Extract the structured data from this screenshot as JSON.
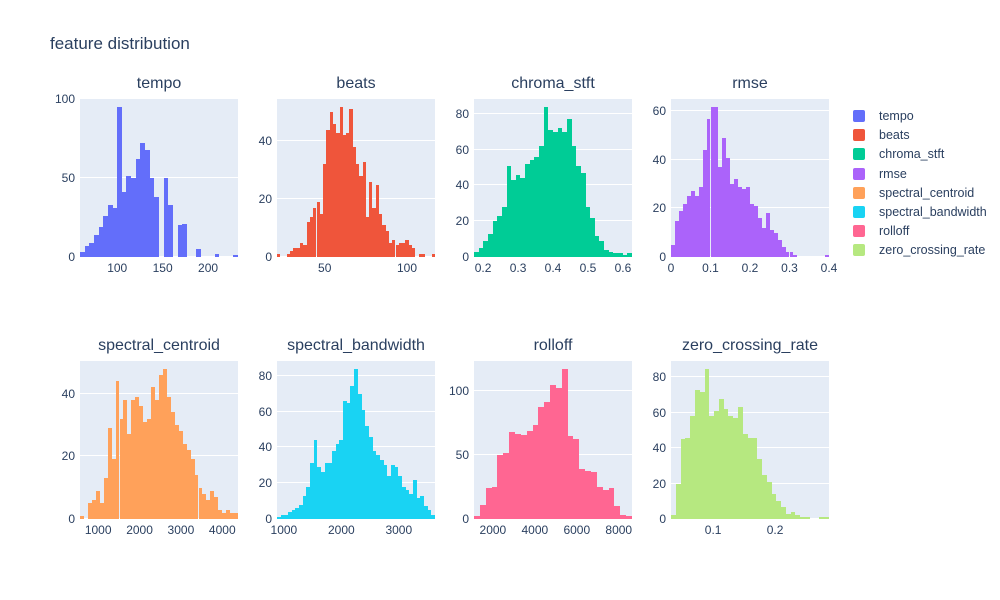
{
  "title": "feature distribution",
  "colors": {
    "paper_background": "#ffffff",
    "plot_background": "#e5ecf6",
    "gridline": "#ffffff",
    "font": "#2a3f5f"
  },
  "legend": {
    "items": [
      {
        "label": "tempo",
        "color": "#636efa"
      },
      {
        "label": "beats",
        "color": "#ef553b"
      },
      {
        "label": "chroma_stft",
        "color": "#00cc96"
      },
      {
        "label": "rmse",
        "color": "#ab63fa"
      },
      {
        "label": "spectral_centroid",
        "color": "#ffa15a"
      },
      {
        "label": "spectral_bandwidth",
        "color": "#19d3f3"
      },
      {
        "label": "rolloff",
        "color": "#ff6692"
      },
      {
        "label": "zero_crossing_rate",
        "color": "#b6e880"
      }
    ]
  },
  "chart_data": [
    {
      "type": "histogram",
      "name": "tempo",
      "title": "tempo",
      "color": "#636efa",
      "x_range": [
        59,
        233
      ],
      "x_tick_values": [
        100,
        150,
        200
      ],
      "x_tick_labels": [
        "100",
        "150",
        "200"
      ],
      "y_max": 100,
      "y_tick_values": [
        0,
        50,
        100
      ],
      "y_tick_labels": [
        "0",
        "50",
        "100"
      ],
      "values": [
        3,
        7,
        9,
        14,
        19,
        26,
        33,
        31,
        95,
        41,
        51,
        50,
        62,
        72,
        68,
        50,
        38,
        0,
        50,
        33,
        0,
        20,
        21,
        0,
        0,
        5,
        0,
        0,
        0,
        2,
        0,
        0,
        0,
        1
      ]
    },
    {
      "type": "histogram",
      "name": "beats",
      "title": "beats",
      "color": "#ef553b",
      "x_range": [
        21,
        117
      ],
      "x_tick_values": [
        50,
        100
      ],
      "x_tick_labels": [
        "50",
        "100"
      ],
      "y_max": 54.6,
      "y_tick_values": [
        0,
        20,
        40
      ],
      "y_tick_labels": [
        "0",
        "20",
        "40"
      ],
      "values": [
        1,
        0,
        0,
        1,
        2,
        3,
        3,
        5,
        4,
        12,
        14,
        17,
        19,
        15,
        32,
        44,
        50,
        46,
        43,
        52,
        42,
        43,
        51,
        38,
        32,
        28,
        33,
        14,
        26,
        17,
        25,
        15,
        11,
        9,
        5,
        6,
        4,
        5,
        5,
        6,
        4,
        3,
        0,
        1,
        1,
        0,
        0,
        1
      ]
    },
    {
      "type": "histogram",
      "name": "chroma_stft",
      "title": "chroma_stft",
      "color": "#00cc96",
      "x_range": [
        0.174,
        0.626
      ],
      "x_tick_values": [
        0.2,
        0.3,
        0.4,
        0.5,
        0.6
      ],
      "x_tick_labels": [
        "0.2",
        "0.3",
        "0.4",
        "0.5",
        "0.6"
      ],
      "y_max": 88.2,
      "y_tick_values": [
        0,
        20,
        40,
        60,
        80
      ],
      "y_tick_labels": [
        "0",
        "20",
        "40",
        "60",
        "80"
      ],
      "values": [
        3,
        5,
        9,
        13,
        20,
        23,
        28,
        51,
        43,
        46,
        44,
        52,
        54,
        56,
        62,
        84,
        71,
        70,
        72,
        70,
        77,
        62,
        51,
        47,
        28,
        22,
        12,
        9,
        4,
        3,
        2,
        2,
        1,
        2
      ]
    },
    {
      "type": "histogram",
      "name": "rmse",
      "title": "rmse",
      "color": "#ab63fa",
      "x_range": [
        0,
        0.4
      ],
      "x_tick_values": [
        0,
        0.1,
        0.2,
        0.3,
        0.4
      ],
      "x_tick_labels": [
        "0",
        "0.1",
        "0.2",
        "0.3",
        "0.4"
      ],
      "y_max": 65.1,
      "y_tick_values": [
        0,
        20,
        40,
        60
      ],
      "y_tick_labels": [
        "0",
        "20",
        "40",
        "60"
      ],
      "values": [
        5,
        15,
        19,
        22,
        25,
        27,
        25,
        29,
        44,
        57,
        62,
        62,
        37,
        49,
        41,
        30,
        32,
        29,
        28,
        29,
        22,
        21,
        16,
        12,
        18,
        11,
        10,
        7,
        4,
        2,
        2,
        1,
        0,
        0,
        0,
        0,
        0,
        0,
        0,
        1
      ]
    },
    {
      "type": "histogram",
      "name": "spectral_centroid",
      "title": "spectral_centroid",
      "color": "#ffa15a",
      "x_range": [
        560,
        4380
      ],
      "x_tick_values": [
        1000,
        2000,
        3000,
        4000
      ],
      "x_tick_labels": [
        "1000",
        "2000",
        "3000",
        "4000"
      ],
      "y_max": 50.4,
      "y_tick_values": [
        0,
        20,
        40
      ],
      "y_tick_labels": [
        "0",
        "20",
        "40"
      ],
      "values": [
        1,
        0,
        5,
        6,
        9,
        5,
        13,
        29,
        19,
        44,
        32,
        38,
        27,
        38,
        39,
        36,
        31,
        32,
        42,
        38,
        46,
        48,
        39,
        34,
        30,
        28,
        24,
        22,
        19,
        14,
        10,
        8,
        6,
        9,
        7,
        3,
        2,
        3,
        2,
        2
      ]
    },
    {
      "type": "histogram",
      "name": "spectral_bandwidth",
      "title": "spectral_bandwidth",
      "color": "#19d3f3",
      "x_range": [
        880,
        3630
      ],
      "x_tick_values": [
        1000,
        2000,
        3000
      ],
      "x_tick_labels": [
        "1000",
        "2000",
        "3000"
      ],
      "y_max": 88.2,
      "y_tick_values": [
        0,
        20,
        40,
        60,
        80
      ],
      "y_tick_labels": [
        "0",
        "20",
        "40",
        "60",
        "80"
      ],
      "values": [
        1,
        2,
        2,
        4,
        5,
        6,
        8,
        13,
        18,
        31,
        44,
        29,
        26,
        31,
        31,
        38,
        42,
        44,
        66,
        65,
        74,
        84,
        70,
        61,
        52,
        46,
        38,
        36,
        33,
        30,
        24,
        30,
        29,
        24,
        18,
        16,
        14,
        22,
        12,
        13,
        7,
        5,
        2
      ]
    },
    {
      "type": "histogram",
      "name": "rolloff",
      "title": "rolloff",
      "color": "#ff6692",
      "x_range": [
        1100,
        8630
      ],
      "x_tick_values": [
        2000,
        4000,
        6000,
        8000
      ],
      "x_tick_labels": [
        "2000",
        "4000",
        "6000",
        "8000"
      ],
      "y_max": 123.9,
      "y_tick_values": [
        0,
        50,
        100
      ],
      "y_tick_labels": [
        "0",
        "50",
        "100"
      ],
      "values": [
        2,
        11,
        24,
        25,
        50,
        52,
        68,
        67,
        66,
        69,
        74,
        88,
        92,
        105,
        103,
        118,
        65,
        63,
        39,
        38,
        37,
        25,
        23,
        24,
        10,
        3,
        2
      ]
    },
    {
      "type": "histogram",
      "name": "zero_crossing_rate",
      "title": "zero_crossing_rate",
      "color": "#b6e880",
      "x_range": [
        0.032,
        0.287
      ],
      "x_tick_values": [
        0.1,
        0.2
      ],
      "x_tick_labels": [
        "0.1",
        "0.2"
      ],
      "y_max": 89.25,
      "y_tick_values": [
        0,
        20,
        40,
        60,
        80
      ],
      "y_tick_labels": [
        "0",
        "20",
        "40",
        "60",
        "80"
      ],
      "values": [
        2,
        20,
        45,
        46,
        58,
        73,
        72,
        85,
        58,
        61,
        68,
        62,
        58,
        57,
        63,
        48,
        46,
        46,
        34,
        25,
        21,
        14,
        10,
        7,
        3,
        4,
        2,
        1,
        1,
        0,
        0,
        1,
        1
      ]
    }
  ]
}
